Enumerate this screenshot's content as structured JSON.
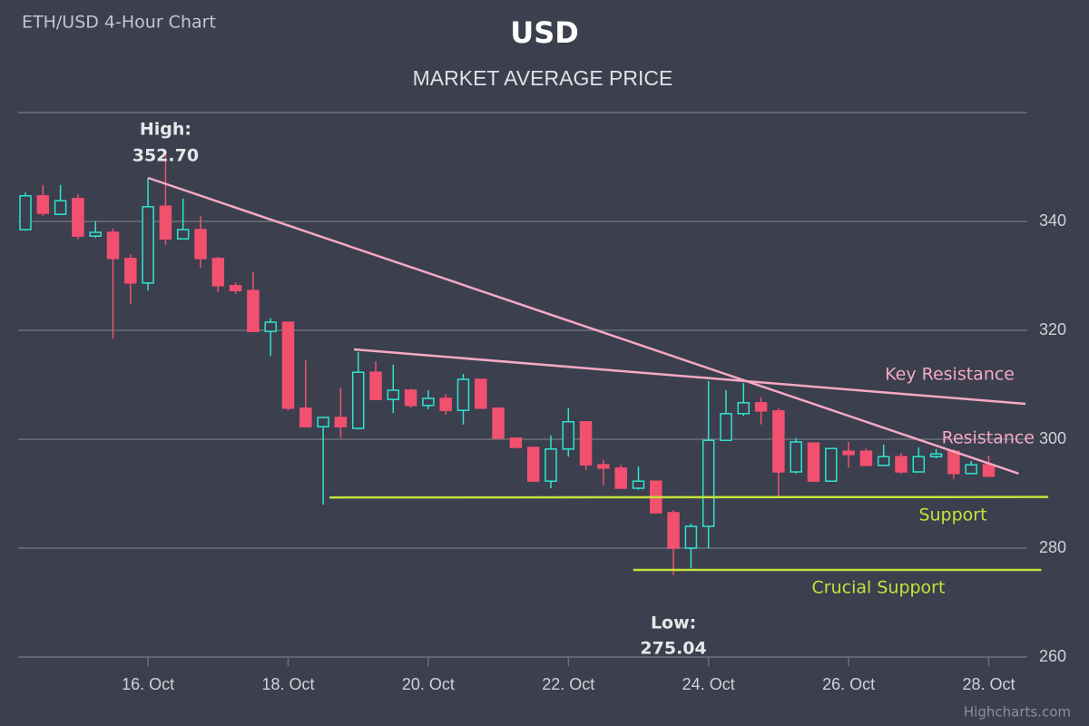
{
  "chart_data": {
    "type": "candlestick",
    "chart_label": "ETH/USD 4-Hour Chart",
    "title": "USD",
    "subtitle": "MARKET AVERAGE PRICE",
    "credits": "Highcharts.com",
    "categories": [
      null,
      null,
      null,
      null,
      null,
      null,
      null,
      "16. Oct",
      null,
      null,
      null,
      null,
      null,
      null,
      null,
      "18. Oct",
      null,
      null,
      null,
      null,
      null,
      null,
      null,
      "20. Oct",
      null,
      null,
      null,
      null,
      null,
      null,
      null,
      "22. Oct",
      null,
      null,
      null,
      null,
      null,
      null,
      null,
      "24. Oct",
      null,
      null,
      null,
      null,
      null,
      null,
      null,
      "26. Oct",
      null,
      null,
      null,
      null,
      null,
      null,
      null,
      "28. Oct"
    ],
    "open": [
      338.5,
      344.7,
      341.3,
      344.2,
      337.3,
      338,
      333.2,
      328.7,
      342.8,
      336.8,
      338.5,
      333.2,
      328.2,
      327.3,
      319.8,
      321.5,
      305.7,
      302.3,
      304,
      302,
      312.3,
      307.3,
      309,
      306.2,
      307.5,
      305.3,
      311,
      305.7,
      300.2,
      298.5,
      292.3,
      298.2,
      303.2,
      295.3,
      294.7,
      291,
      292.3,
      286.5,
      280,
      284,
      299.8,
      304.7,
      306.7,
      305.2,
      294,
      299.3,
      292.3,
      297.8,
      297.8,
      295.2,
      296.8,
      294,
      296.8,
      297.8,
      293.7,
      295.3
    ],
    "high": [
      345.3,
      346.7,
      346.7,
      345,
      340,
      338.7,
      334,
      348,
      352.7,
      344.2,
      341,
      333.5,
      328.8,
      330.7,
      322.2,
      321.5,
      314.5,
      304,
      309.5,
      316,
      314.3,
      313.7,
      309.3,
      309,
      308.3,
      312,
      311,
      305.7,
      300.2,
      298.5,
      300.7,
      305.7,
      303.2,
      296.2,
      295.3,
      295,
      292.3,
      287,
      284.5,
      310.7,
      309,
      310.3,
      307.7,
      305.7,
      300.2,
      299.3,
      298.3,
      299.5,
      298.3,
      299,
      297.5,
      298.5,
      298.2,
      298.2,
      296,
      297
    ],
    "low": [
      338.3,
      341,
      341.2,
      336.7,
      337,
      318.5,
      324.8,
      327.3,
      335.7,
      336.8,
      331.5,
      327,
      326.7,
      319.8,
      315.3,
      305.3,
      302.3,
      288,
      300.3,
      301.8,
      307.3,
      304.8,
      305.8,
      305.5,
      304.5,
      302.7,
      305.7,
      300.2,
      298.5,
      292.3,
      291,
      296.8,
      294.3,
      291.5,
      291,
      290.7,
      286.5,
      275.04,
      276.3,
      280,
      299.8,
      304.3,
      302.7,
      289.3,
      293.7,
      292.3,
      292.3,
      294.8,
      295.2,
      295.2,
      293.7,
      294,
      296.5,
      292.7,
      293.7,
      293.2
    ],
    "close": [
      344.7,
      341.5,
      343.8,
      337.3,
      338,
      333.2,
      328.7,
      342.7,
      336.8,
      338.5,
      333.2,
      328.2,
      327.3,
      319.8,
      321.5,
      305.7,
      302.3,
      304,
      302.3,
      312.3,
      307.3,
      309,
      306.2,
      307.5,
      305.3,
      311,
      305.7,
      300.2,
      298.5,
      292.3,
      298.2,
      303.2,
      295.3,
      294.7,
      291,
      292.3,
      286.5,
      280,
      284,
      299.8,
      304.7,
      306.7,
      305.2,
      294,
      299.5,
      292.3,
      298.3,
      297.2,
      295.2,
      296.8,
      294,
      296.8,
      297.3,
      293.7,
      295.3,
      293.2
    ],
    "up_color": "#2fe4cf",
    "down_color": "#f2506f",
    "ylim": [
      260,
      360
    ],
    "yticks": [
      260,
      280,
      300,
      320,
      340
    ],
    "grid": true,
    "annotations": [
      {
        "text": "High:",
        "value": 352.7,
        "value_label": "352.70"
      },
      {
        "text": "Low:",
        "value": 275.04,
        "value_label": "275.04"
      }
    ],
    "trendlines": [
      {
        "name": "Key Resistance",
        "color": "#f5a9c3",
        "x": [
          18.76,
          57.1
        ],
        "y": [
          316.5,
          306.5
        ]
      },
      {
        "name": "Resistance",
        "color": "#f5a9c3",
        "x": [
          7.0,
          56.7
        ],
        "y": [
          348,
          293.7
        ]
      },
      {
        "name": "Support",
        "color": "#c5e33a",
        "x": [
          17.36,
          58.4
        ],
        "y": [
          289.3,
          289.4
        ]
      },
      {
        "name": "Crucial Support",
        "color": "#c5e33a",
        "x": [
          34.7,
          58.0
        ],
        "y": [
          276,
          276
        ]
      }
    ]
  }
}
